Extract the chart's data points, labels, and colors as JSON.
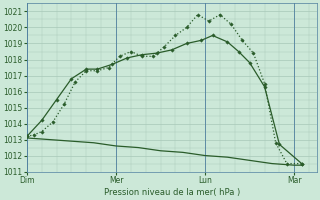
{
  "title": "Pression niveau de la mer( hPa )",
  "bg_color": "#cce8d8",
  "grid_color": "#a8c8b8",
  "line_color": "#2a5c2a",
  "ylim": [
    1011,
    1021.5
  ],
  "ytick_min": 1011,
  "ytick_max": 1021,
  "xtick_labels": [
    "Dim",
    "Mer",
    "Lun",
    "Mar"
  ],
  "xtick_positions": [
    0,
    48,
    96,
    144
  ],
  "xlim": [
    0,
    156
  ],
  "series1_dotted": {
    "x": [
      0,
      4,
      8,
      14,
      20,
      26,
      32,
      38,
      44,
      50,
      56,
      62,
      68,
      74,
      80,
      86,
      92,
      98,
      104,
      110,
      116,
      122,
      128,
      134,
      140,
      148
    ],
    "y": [
      1013.2,
      1013.3,
      1013.5,
      1014.1,
      1015.2,
      1016.6,
      1017.3,
      1017.3,
      1017.5,
      1018.2,
      1018.5,
      1018.2,
      1018.2,
      1018.8,
      1019.5,
      1020.0,
      1020.8,
      1020.4,
      1020.8,
      1020.2,
      1019.2,
      1018.4,
      1016.5,
      1012.8,
      1011.5,
      1011.5
    ]
  },
  "series2_solid": {
    "x": [
      0,
      8,
      16,
      24,
      32,
      38,
      46,
      54,
      62,
      70,
      78,
      86,
      94,
      100,
      108,
      114,
      120,
      128,
      136,
      148
    ],
    "y": [
      1013.2,
      1014.2,
      1015.5,
      1016.8,
      1017.4,
      1017.4,
      1017.7,
      1018.1,
      1018.3,
      1018.4,
      1018.6,
      1019.0,
      1019.2,
      1019.5,
      1019.1,
      1018.5,
      1017.8,
      1016.3,
      1012.7,
      1011.5
    ]
  },
  "series3_flat": {
    "x": [
      0,
      12,
      24,
      36,
      48,
      60,
      72,
      84,
      96,
      108,
      120,
      132,
      144,
      148
    ],
    "y": [
      1013.1,
      1013.0,
      1012.9,
      1012.8,
      1012.6,
      1012.5,
      1012.3,
      1012.2,
      1012.0,
      1011.9,
      1011.7,
      1011.5,
      1011.4,
      1011.4
    ]
  },
  "vline_color": "#5080a0",
  "spine_color": "#5080a0"
}
